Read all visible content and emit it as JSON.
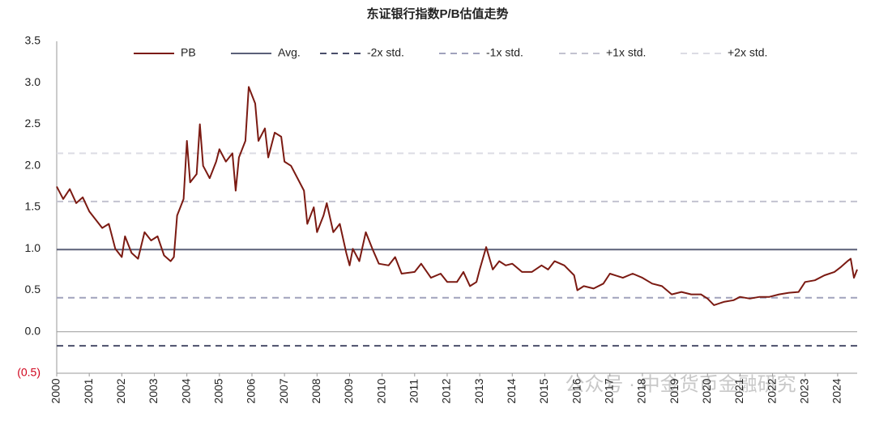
{
  "chart_data": {
    "type": "line",
    "title": "东证银行指数P/B估值走势",
    "annotation": "公众号 · 中金货币金融研究",
    "xlim": [
      2000,
      2024.6
    ],
    "xticks": [
      2000,
      2001,
      2002,
      2003,
      2004,
      2005,
      2006,
      2007,
      2008,
      2009,
      2010,
      2011,
      2012,
      2013,
      2014,
      2015,
      2016,
      2017,
      2018,
      2019,
      2020,
      2021,
      2022,
      2023,
      2024
    ],
    "ylim": [
      -0.5,
      3.5
    ],
    "yticks": [
      3.5,
      {
        "value": 3,
        "label": "3.0"
      },
      2.5,
      {
        "value": 2,
        "label": "2.0"
      },
      1.5,
      {
        "value": 1,
        "label": "1.0"
      },
      0.5,
      {
        "value": 0,
        "label": "0.0"
      },
      {
        "value": -0.5,
        "label": "(0.5)"
      }
    ],
    "series": [
      {
        "name": "PB",
        "color": "#7b1a12",
        "x": [
          2000.0,
          2000.2,
          2000.4,
          2000.6,
          2000.8,
          2001.0,
          2001.2,
          2001.4,
          2001.6,
          2001.8,
          2002.0,
          2002.1,
          2002.3,
          2002.5,
          2002.7,
          2002.9,
          2003.1,
          2003.3,
          2003.5,
          2003.6,
          2003.7,
          2003.9,
          2004.0,
          2004.1,
          2004.3,
          2004.4,
          2004.5,
          2004.7,
          2004.9,
          2005.0,
          2005.2,
          2005.4,
          2005.5,
          2005.6,
          2005.8,
          2005.9,
          2006.1,
          2006.2,
          2006.4,
          2006.5,
          2006.7,
          2006.9,
          2007.0,
          2007.2,
          2007.4,
          2007.6,
          2007.7,
          2007.9,
          2008.0,
          2008.2,
          2008.3,
          2008.5,
          2008.7,
          2008.9,
          2009.0,
          2009.1,
          2009.3,
          2009.5,
          2009.7,
          2009.9,
          2010.2,
          2010.4,
          2010.6,
          2011.0,
          2011.2,
          2011.5,
          2011.8,
          2012.0,
          2012.3,
          2012.5,
          2012.7,
          2012.9,
          2013.0,
          2013.2,
          2013.4,
          2013.6,
          2013.8,
          2014.0,
          2014.3,
          2014.6,
          2014.9,
          2015.1,
          2015.3,
          2015.6,
          2015.9,
          2016.0,
          2016.2,
          2016.5,
          2016.8,
          2017.0,
          2017.4,
          2017.7,
          2018.0,
          2018.3,
          2018.6,
          2018.9,
          2019.2,
          2019.5,
          2019.8,
          2020.0,
          2020.2,
          2020.5,
          2020.8,
          2021.0,
          2021.3,
          2021.6,
          2021.9,
          2022.2,
          2022.5,
          2022.8,
          2023.0,
          2023.3,
          2023.6,
          2023.9,
          2024.1,
          2024.3,
          2024.4,
          2024.5,
          2024.6
        ],
        "values": [
          1.75,
          1.6,
          1.72,
          1.55,
          1.62,
          1.45,
          1.35,
          1.25,
          1.3,
          1.0,
          0.9,
          1.15,
          0.95,
          0.88,
          1.2,
          1.1,
          1.15,
          0.92,
          0.85,
          0.9,
          1.4,
          1.6,
          2.3,
          1.8,
          1.9,
          2.5,
          2.0,
          1.85,
          2.05,
          2.2,
          2.05,
          2.15,
          1.7,
          2.1,
          2.3,
          2.95,
          2.75,
          2.3,
          2.45,
          2.1,
          2.4,
          2.35,
          2.05,
          2.0,
          1.85,
          1.7,
          1.3,
          1.5,
          1.2,
          1.4,
          1.55,
          1.2,
          1.3,
          0.95,
          0.8,
          1.0,
          0.85,
          1.2,
          1.0,
          0.82,
          0.8,
          0.9,
          0.7,
          0.72,
          0.82,
          0.65,
          0.7,
          0.6,
          0.6,
          0.72,
          0.55,
          0.6,
          0.75,
          1.02,
          0.75,
          0.85,
          0.8,
          0.82,
          0.72,
          0.72,
          0.8,
          0.75,
          0.85,
          0.8,
          0.68,
          0.5,
          0.55,
          0.52,
          0.58,
          0.7,
          0.65,
          0.7,
          0.65,
          0.58,
          0.55,
          0.45,
          0.48,
          0.45,
          0.45,
          0.4,
          0.32,
          0.36,
          0.38,
          0.42,
          0.4,
          0.42,
          0.42,
          0.45,
          0.47,
          0.48,
          0.6,
          0.62,
          0.68,
          0.72,
          0.78,
          0.85,
          0.88,
          0.65,
          0.75
        ]
      }
    ],
    "reference_lines": [
      {
        "name": "Avg.",
        "value": 0.99,
        "color": "#5b6079",
        "dashed": false
      },
      {
        "name": "-2x std.",
        "value": -0.17,
        "color": "#4a4e6a",
        "dashed": true
      },
      {
        "name": "-1x std.",
        "value": 0.41,
        "color": "#a0a2bc",
        "dashed": true
      },
      {
        "name": "+1x std.",
        "value": 1.57,
        "color": "#c2c2d0",
        "dashed": true
      },
      {
        "name": "+2x std.",
        "value": 2.15,
        "color": "#dcdce4",
        "dashed": true
      }
    ]
  }
}
